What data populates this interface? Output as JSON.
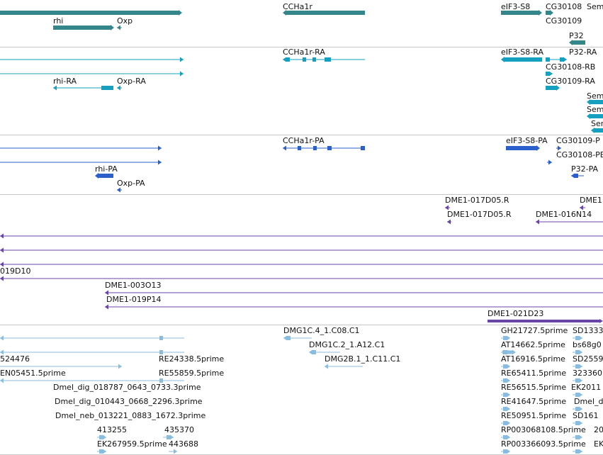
{
  "colors": {
    "gene": "#35868a",
    "mrna": "#16a0bf",
    "protein": "#2a5fcc",
    "bac": "#6a45a8",
    "est": "#88bde0",
    "separator": "#c8c8c8"
  },
  "tracks": [
    {
      "name": "gene",
      "features": [
        {
          "label": "rhi"
        },
        {
          "label": "Oxp"
        },
        {
          "label": "CCHa1r"
        },
        {
          "label": "eIF3-S8"
        },
        {
          "label": "CG30108"
        },
        {
          "label": "Sem"
        },
        {
          "label": "CG30109"
        },
        {
          "label": "P32"
        }
      ]
    },
    {
      "name": "mrna",
      "features": [
        {
          "label": "CCHa1r-RA"
        },
        {
          "label": "eIF3-S8-RA"
        },
        {
          "label": "P32-RA"
        },
        {
          "label": "CG30108-RB"
        },
        {
          "label": "rhi-RA"
        },
        {
          "label": "Oxp-RA"
        },
        {
          "label": "CG30109-RA"
        },
        {
          "label": "Sem"
        },
        {
          "label": "Sem"
        },
        {
          "label": "Sem"
        }
      ]
    },
    {
      "name": "protein",
      "features": [
        {
          "label": "CCHa1r-PA"
        },
        {
          "label": "eIF3-S8-PA"
        },
        {
          "label": "CG30109-P"
        },
        {
          "label": "CG30108-PB"
        },
        {
          "label": "rhi-PA"
        },
        {
          "label": "P32-PA"
        },
        {
          "label": "Oxp-PA"
        }
      ]
    },
    {
      "name": "bac",
      "features": [
        {
          "label": "DME1-017D05.R"
        },
        {
          "label": "DME1"
        },
        {
          "label": "DME1-017D05.R"
        },
        {
          "label": "DME1-016N14"
        },
        {
          "label": "019D10"
        },
        {
          "label": "DME1-003O13"
        },
        {
          "label": "DME1-019P14"
        },
        {
          "label": "DME1-021D23"
        }
      ]
    },
    {
      "name": "est",
      "features": [
        {
          "label": "DMG1C.4_1.C08.C1"
        },
        {
          "label": "GH21727.5prime"
        },
        {
          "label": "SD1333"
        },
        {
          "label": "DMG1C.2_1.A12.C1"
        },
        {
          "label": "AT14662.5prime"
        },
        {
          "label": "bs68g0"
        },
        {
          "label": "524476"
        },
        {
          "label": "RE24338.5prime"
        },
        {
          "label": "DMG2B.1_1.C11.C1"
        },
        {
          "label": "AT16916.5prime"
        },
        {
          "label": "SD2559"
        },
        {
          "label": "EN05451.5prime"
        },
        {
          "label": "RE55859.5prime"
        },
        {
          "label": "RE65411.5prime"
        },
        {
          "label": "323360"
        },
        {
          "label": "Dmel_dig_018787_0643_0733.3prime"
        },
        {
          "label": "RE56515.5prime"
        },
        {
          "label": "EK2011"
        },
        {
          "label": "Dmel_dig_010443_0668_2296.3prime"
        },
        {
          "label": "RE41647.5prime"
        },
        {
          "label": "Dmel_d"
        },
        {
          "label": "Dmel_neb_013221_0883_1672.3prime"
        },
        {
          "label": "RE50951.5prime"
        },
        {
          "label": "SD161"
        },
        {
          "label": "413255"
        },
        {
          "label": "435370"
        },
        {
          "label": "RP003068108.5prime"
        },
        {
          "label": "20"
        },
        {
          "label": "EK267959.5prime"
        },
        {
          "label": "443688"
        },
        {
          "label": "RP003366093.5prime"
        },
        {
          "label": "EK"
        }
      ]
    }
  ]
}
